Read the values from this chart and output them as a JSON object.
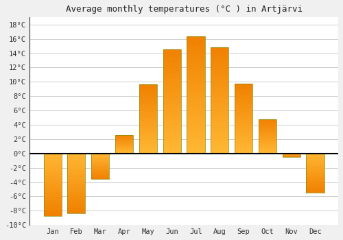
{
  "title": "Average monthly temperatures (°C ) in Artjärvi",
  "months": [
    "Jan",
    "Feb",
    "Mar",
    "Apr",
    "May",
    "Jun",
    "Jul",
    "Aug",
    "Sep",
    "Oct",
    "Nov",
    "Dec"
  ],
  "temperatures": [
    -8.7,
    -8.4,
    -3.6,
    2.6,
    9.6,
    14.5,
    16.3,
    14.8,
    9.7,
    4.8,
    -0.5,
    -5.5
  ],
  "bar_color_top": "#FFB733",
  "bar_color_bottom": "#F08000",
  "bar_edge_color": "#888800",
  "ylim": [
    -10,
    19
  ],
  "yticks": [
    -10,
    -8,
    -6,
    -4,
    -2,
    0,
    2,
    4,
    6,
    8,
    10,
    12,
    14,
    16,
    18
  ],
  "ytick_labels": [
    "-10°C",
    "-8°C",
    "-6°C",
    "-4°C",
    "-2°C",
    "0°C",
    "2°C",
    "4°C",
    "6°C",
    "8°C",
    "10°C",
    "12°C",
    "14°C",
    "16°C",
    "18°C"
  ],
  "grid_color": "#cccccc",
  "plot_bg_color": "#ffffff",
  "fig_bg_color": "#f0f0f0",
  "title_fontsize": 9,
  "tick_fontsize": 7.5
}
